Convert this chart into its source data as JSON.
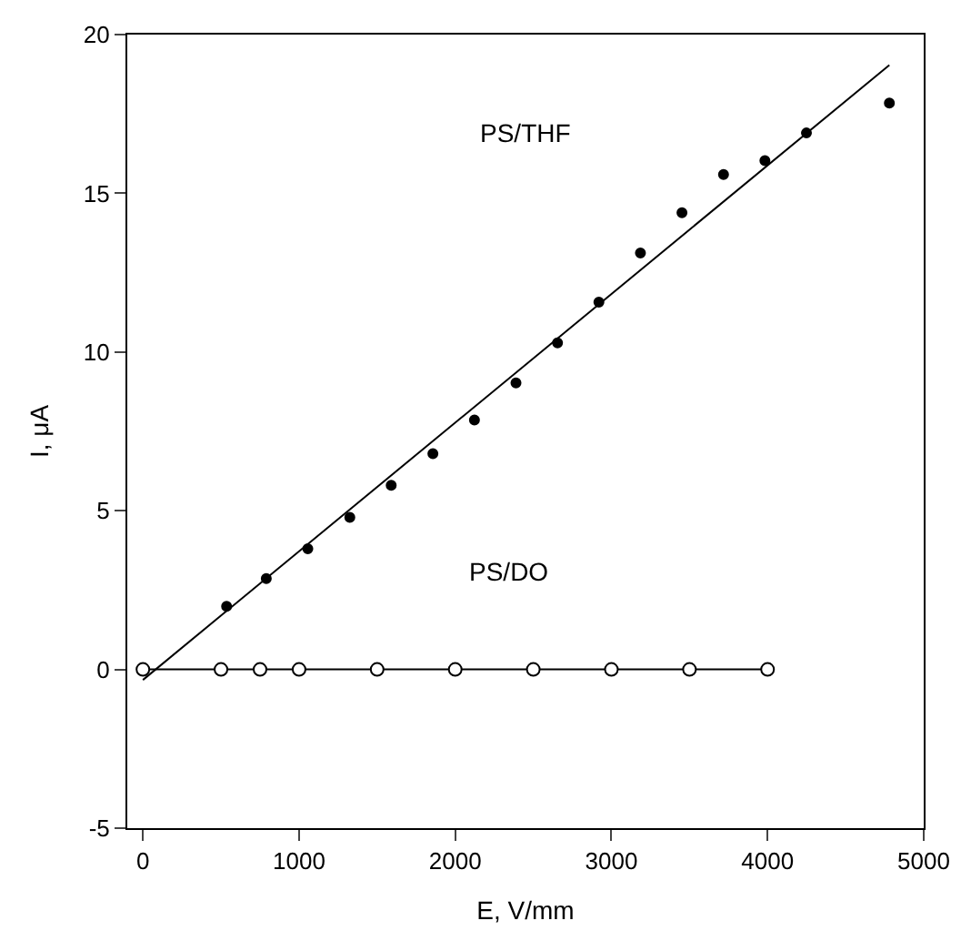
{
  "chart_data": {
    "type": "scatter",
    "xlabel": "E, V/mm",
    "ylabel": "I, μA",
    "xlim": [
      -100,
      5000
    ],
    "ylim": [
      -5,
      20
    ],
    "xticks": [
      0,
      1000,
      2000,
      3000,
      4000,
      5000
    ],
    "yticks": [
      -5,
      0,
      5,
      10,
      15,
      20
    ],
    "series": [
      {
        "marker": "circle",
        "color": "#000000",
        "x": [
          536,
          790,
          1056,
          1325,
          1590,
          1857,
          2123,
          2389,
          2655,
          2920,
          3186,
          3452,
          3718,
          3983,
          4249,
          4780
        ],
        "values": [
          1.99,
          2.86,
          3.8,
          4.79,
          5.8,
          6.8,
          7.86,
          9.03,
          10.29,
          11.57,
          13.12,
          14.39,
          15.59,
          16.03,
          16.9,
          17.84
        ]
      },
      {
        "type": "line",
        "marker": "none",
        "line_style": "solid",
        "color": "#000000",
        "x": [
          0,
          4780
        ],
        "values": [
          -0.33,
          19.04
        ]
      },
      {
        "type": "line",
        "marker": "circle",
        "line_style": "solid",
        "color": "#000000",
        "x": [
          0,
          500,
          750,
          1000,
          1500,
          2000,
          2500,
          3000,
          3500,
          4000
        ],
        "values": [
          0,
          0,
          0,
          0,
          0,
          0,
          0,
          0,
          0,
          0
        ]
      }
    ],
    "annotations": [
      "PS/THF",
      "PS/DO"
    ]
  }
}
